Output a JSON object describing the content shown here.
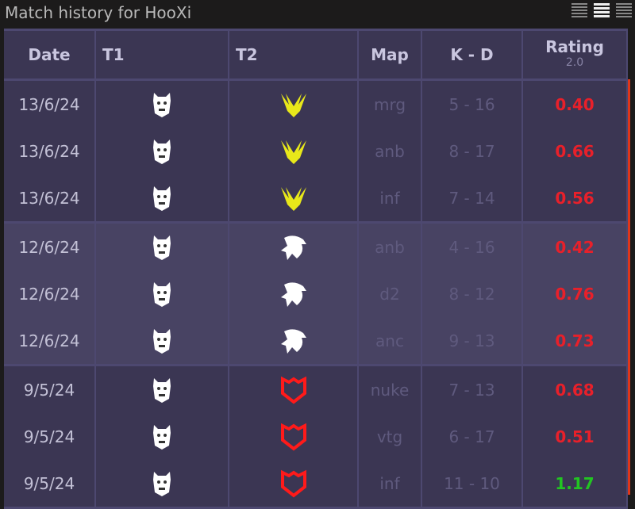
{
  "title": "Match history for HooXi",
  "header": {
    "date": "Date",
    "t1": "T1",
    "t2": "T2",
    "map": "Map",
    "kd": "K - D",
    "rating": "Rating",
    "rating_sub": "2.0"
  },
  "colors": {
    "low": "#e8202a",
    "high": "#22c522",
    "mouz": "#ff1a1a",
    "vitality": "#e8e81a",
    "logo": "#ffffff"
  },
  "groups": [
    {
      "opponent": "vitality-logo",
      "rows": [
        {
          "date": "13/6/24",
          "map": "mrg",
          "kd": "5 - 16",
          "rating": "0.40"
        },
        {
          "date": "13/6/24",
          "map": "anb",
          "kd": "8 - 17",
          "rating": "0.66"
        },
        {
          "date": "13/6/24",
          "map": "inf",
          "kd": "7 - 14",
          "rating": "0.56"
        }
      ]
    },
    {
      "opponent": "spirit-logo",
      "rows": [
        {
          "date": "12/6/24",
          "map": "anb",
          "kd": "4 - 16",
          "rating": "0.42"
        },
        {
          "date": "12/6/24",
          "map": "d2",
          "kd": "8 - 12",
          "rating": "0.76"
        },
        {
          "date": "12/6/24",
          "map": "anc",
          "kd": "9 - 13",
          "rating": "0.73"
        }
      ]
    },
    {
      "opponent": "mouz-logo",
      "rows": [
        {
          "date": "9/5/24",
          "map": "nuke",
          "kd": "7 - 13",
          "rating": "0.68"
        },
        {
          "date": "9/5/24",
          "map": "vtg",
          "kd": "6 - 17",
          "rating": "0.51"
        },
        {
          "date": "9/5/24",
          "map": "inf",
          "kd": "11 - 10",
          "rating": "1.17"
        }
      ]
    }
  ]
}
